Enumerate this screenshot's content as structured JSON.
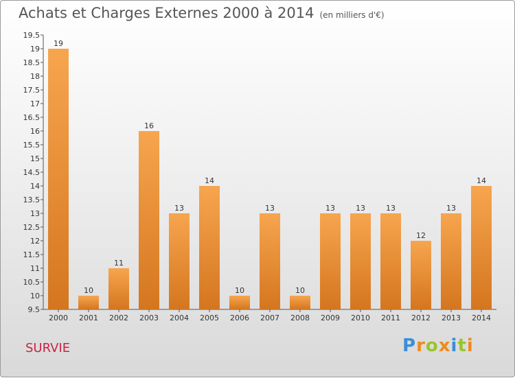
{
  "header": {
    "title": "Achats et Charges Externes 2000 à 2014",
    "subtitle": "(en milliers d'€)"
  },
  "footer": {
    "commune": "SURVIE",
    "logo_letters": [
      "P",
      "r",
      "o",
      "x",
      "i",
      "t",
      "i"
    ]
  },
  "colors": {
    "bar_top": "#f7a54f",
    "bar_bottom": "#d4761f",
    "commune": "#cc2244"
  },
  "chart_data": {
    "type": "bar",
    "title": "Achats et Charges Externes 2000 à 2014",
    "subtitle": "(en milliers d'€)",
    "categories": [
      "2000",
      "2001",
      "2002",
      "2003",
      "2004",
      "2005",
      "2006",
      "2007",
      "2008",
      "2009",
      "2010",
      "2011",
      "2012",
      "2013",
      "2014"
    ],
    "values": [
      19,
      10,
      11,
      16,
      13,
      14,
      10,
      13,
      10,
      13,
      13,
      13,
      12,
      13,
      14
    ],
    "ylim": [
      9.5,
      19.5
    ],
    "yticks": [
      "9.5",
      "10",
      "10.5",
      "11",
      "11.5",
      "12",
      "12.5",
      "13",
      "13.5",
      "14",
      "14.5",
      "15",
      "15.5",
      "16",
      "16.5",
      "17",
      "17.5",
      "18",
      "18.5",
      "19",
      "19.5"
    ],
    "grid": false,
    "legend": "none"
  }
}
